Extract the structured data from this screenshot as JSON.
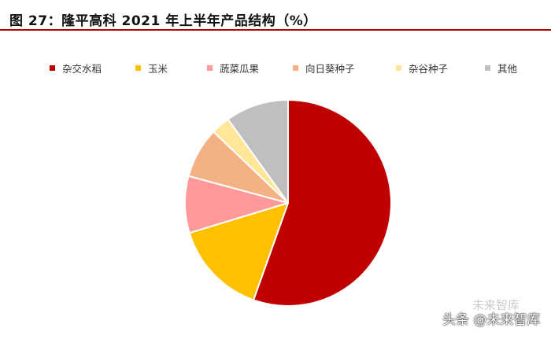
{
  "figure": {
    "title": "图 27：隆平高科 2021 年上半年产品结构（%）"
  },
  "chart_data": {
    "type": "pie",
    "title": "",
    "categories": [
      "杂交水稻",
      "玉米",
      "蔬菜瓜果",
      "向日葵种子",
      "杂谷种子",
      "其他"
    ],
    "values": [
      56,
      15,
      9,
      8,
      3,
      10
    ],
    "colors": [
      "#C00000",
      "#FFC000",
      "#FF9999",
      "#F4B183",
      "#FFE699",
      "#BFBFBF"
    ],
    "start_angle_deg": 0,
    "direction": "clockwise",
    "legend_position": "top"
  },
  "watermark": {
    "text": "头条 @未来智库",
    "faint_text": "未来智库"
  }
}
